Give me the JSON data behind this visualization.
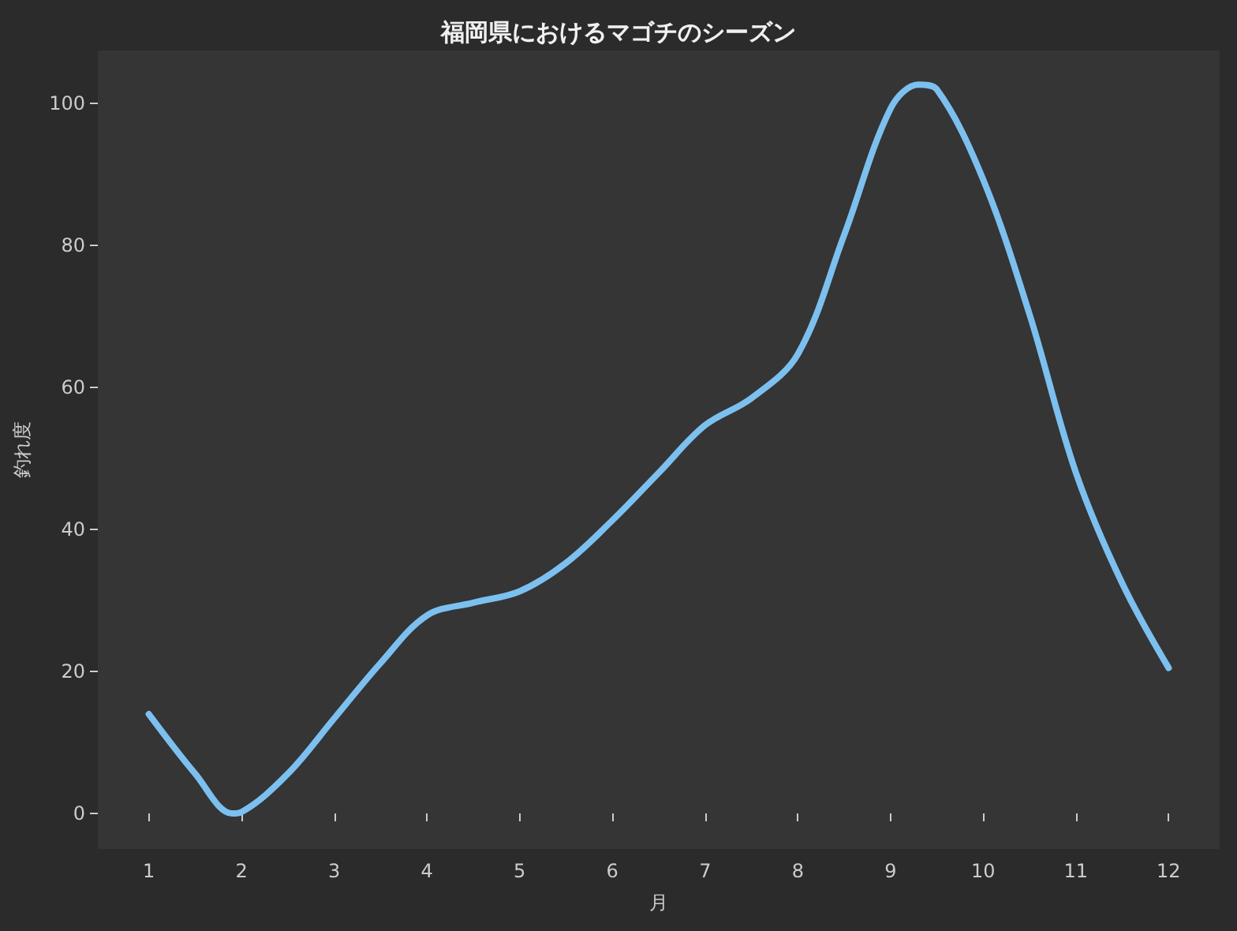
{
  "chart_data": {
    "type": "line",
    "title": "福岡県におけるマゴチのシーズン",
    "xlabel": "月",
    "ylabel": "釣れ度",
    "x": [
      1,
      1.5,
      1.9,
      2,
      2.5,
      3,
      3.5,
      4,
      4.5,
      5,
      5.5,
      6,
      6.5,
      7,
      7.5,
      8,
      8.5,
      9,
      9.3,
      9.5,
      10,
      10.5,
      11,
      11.5,
      12
    ],
    "series": [
      {
        "color": "#7cc0f0",
        "values": [
          14,
          5.6,
          0,
          0.2,
          5.6,
          13.4,
          21.2,
          27.9,
          29.7,
          31.3,
          35.3,
          41.3,
          48,
          54.7,
          58.5,
          64.7,
          81.5,
          99.3,
          102.7,
          102,
          89.3,
          70.3,
          48,
          32.4,
          20.5
        ]
      }
    ],
    "xlim": [
      0.45,
      12.55
    ],
    "xticks": [
      1,
      2,
      3,
      4,
      5,
      6,
      7,
      8,
      9,
      10,
      11,
      12
    ],
    "ylim": [
      -5,
      107.5
    ],
    "yticks": [
      0,
      20,
      40,
      60,
      80,
      100
    ],
    "grid": false,
    "marker": "none",
    "line_style": "solid"
  }
}
